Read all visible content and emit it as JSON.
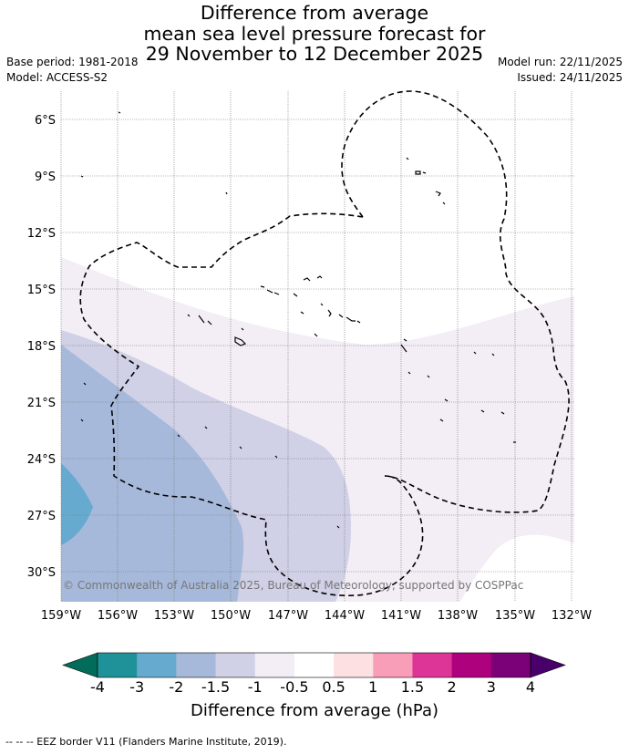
{
  "title": {
    "line1": "Difference from average",
    "line2": "mean sea level pressure forecast for",
    "line3": "29 November to 12 December 2025"
  },
  "meta": {
    "base_period": "Base period: 1981-2018",
    "model": "Model: ACCESS-S2",
    "model_run": "Model run: 22/11/2025",
    "issued": "Issued: 24/11/2025"
  },
  "map": {
    "copyright": "© Commonwealth of Australia 2025, Bureau of Meteorology, supported by COSPPac",
    "lon_ticks": [
      "159°W",
      "156°W",
      "153°W",
      "150°W",
      "147°W",
      "144°W",
      "141°W",
      "138°W",
      "135°W",
      "132°W"
    ],
    "lat_ticks": [
      "6°S",
      "9°S",
      "12°S",
      "15°S",
      "18°S",
      "21°S",
      "24°S",
      "27°S",
      "30°S"
    ],
    "category_colors": {
      "-3 to -2": "#66aad0",
      "-2 to -1.5": "#a6b9da",
      "-1.5 to -1": "#d0d0e6",
      "-1 to -0.5": "#f3edf6",
      "-0.5 to 0.5": "#ffffff"
    }
  },
  "colorbar": {
    "title": "Difference from average (hPa)",
    "tick_labels": [
      "-4",
      "-3",
      "-2",
      "-1.5",
      "-1",
      "-0.5",
      "0.5",
      "1",
      "1.5",
      "2",
      "3",
      "4"
    ],
    "colors": [
      "#016c59",
      "#1f9299",
      "#66aad0",
      "#a6b9da",
      "#d0d0e6",
      "#f3edf6",
      "#ffffff",
      "#fde0e2",
      "#f99eb9",
      "#dd3497",
      "#ad017e",
      "#7a0177",
      "#49006a"
    ]
  },
  "footer": {
    "eez_legend": "--  --  -- EEZ border V11 (Flanders Marine Institute, 2019)."
  }
}
